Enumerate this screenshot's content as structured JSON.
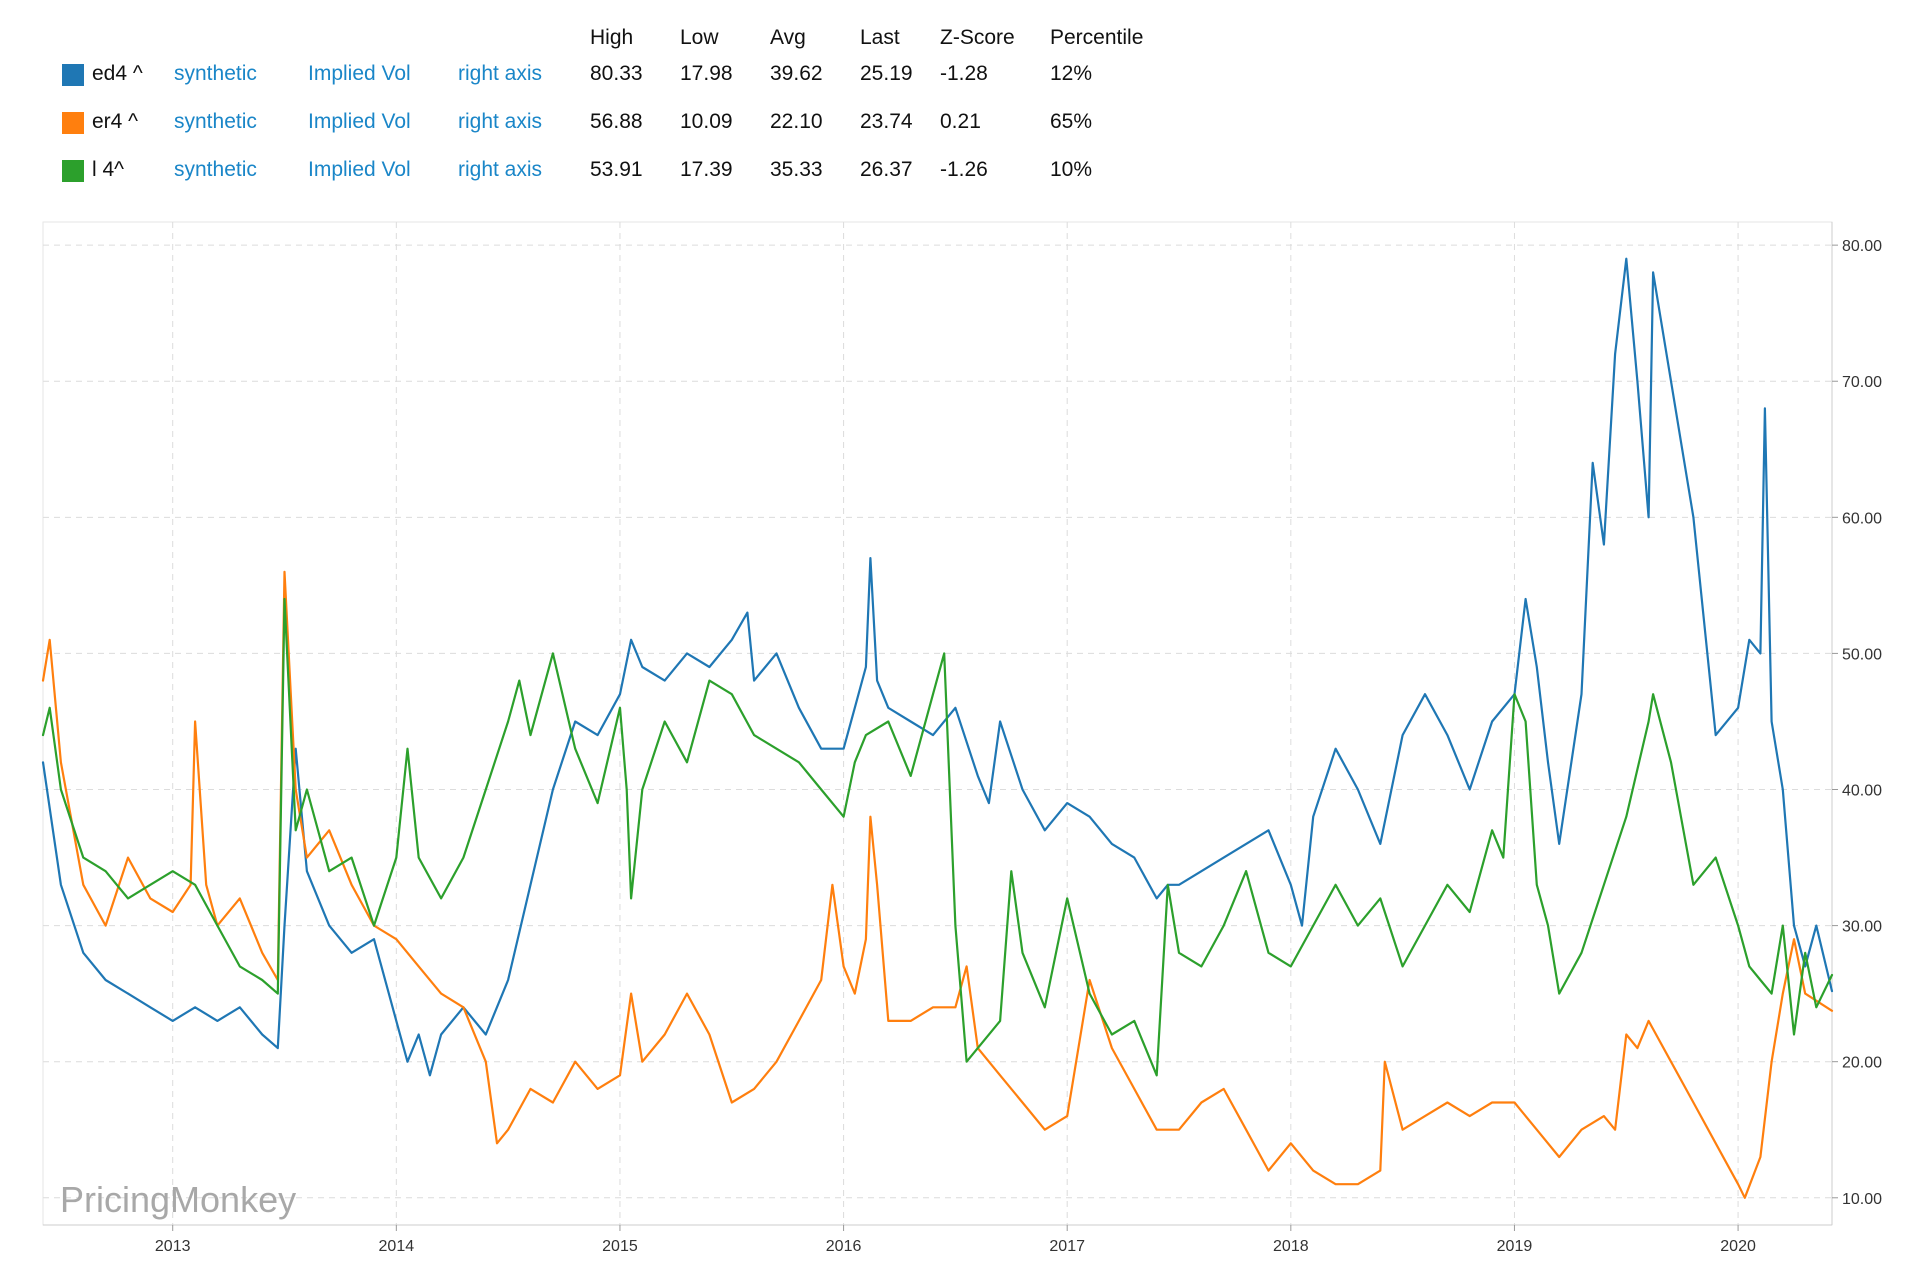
{
  "legend": {
    "headers": [
      "High",
      "Low",
      "Avg",
      "Last",
      "Z-Score",
      "Percentile"
    ],
    "rows": [
      {
        "name": "ed4 ^",
        "color": "#1f77b4",
        "source": "synthetic",
        "measure": "Implied Vol",
        "axis": "right axis",
        "high": "80.33",
        "low": "17.98",
        "avg": "39.62",
        "last": "25.19",
        "zscore": "-1.28",
        "percentile": "12%"
      },
      {
        "name": "er4 ^",
        "color": "#ff7f0e",
        "source": "synthetic",
        "measure": "Implied Vol",
        "axis": "right axis",
        "high": "56.88",
        "low": "10.09",
        "avg": "22.10",
        "last": "23.74",
        "zscore": "0.21",
        "percentile": "65%"
      },
      {
        "name": "l 4^",
        "color": "#2ca02c",
        "source": "synthetic",
        "measure": "Implied Vol",
        "axis": "right axis",
        "high": "53.91",
        "low": "17.39",
        "avg": "35.33",
        "last": "26.37",
        "zscore": "-1.26",
        "percentile": "10%"
      }
    ]
  },
  "watermark": "PricingMonkey",
  "chart_data": {
    "type": "line",
    "xlim": [
      2012.42,
      2020.42
    ],
    "ylim": [
      8.0,
      81.7
    ],
    "x_ticks": [
      "2013",
      "2014",
      "2015",
      "2016",
      "2017",
      "2018",
      "2019",
      "2020"
    ],
    "y_ticks": [
      "10.00",
      "20.00",
      "30.00",
      "40.00",
      "50.00",
      "60.00",
      "70.00",
      "80.00"
    ],
    "y_axis": "right",
    "grid": true,
    "series": [
      {
        "name": "ed4 ^",
        "color": "#1f77b4",
        "x": [
          2012.42,
          2012.5,
          2012.6,
          2012.7,
          2012.8,
          2012.9,
          2013.0,
          2013.1,
          2013.2,
          2013.3,
          2013.4,
          2013.47,
          2013.5,
          2013.55,
          2013.6,
          2013.7,
          2013.8,
          2013.9,
          2014.0,
          2014.05,
          2014.1,
          2014.15,
          2014.2,
          2014.3,
          2014.4,
          2014.5,
          2014.6,
          2014.7,
          2014.8,
          2014.9,
          2015.0,
          2015.05,
          2015.1,
          2015.2,
          2015.3,
          2015.4,
          2015.5,
          2015.57,
          2015.6,
          2015.7,
          2015.8,
          2015.9,
          2016.0,
          2016.05,
          2016.1,
          2016.12,
          2016.15,
          2016.2,
          2016.3,
          2016.4,
          2016.5,
          2016.6,
          2016.65,
          2016.7,
          2016.8,
          2016.9,
          2017.0,
          2017.1,
          2017.2,
          2017.3,
          2017.4,
          2017.45,
          2017.5,
          2017.6,
          2017.7,
          2017.8,
          2017.9,
          2018.0,
          2018.05,
          2018.1,
          2018.2,
          2018.3,
          2018.4,
          2018.5,
          2018.6,
          2018.7,
          2018.8,
          2018.9,
          2019.0,
          2019.05,
          2019.1,
          2019.15,
          2019.2,
          2019.3,
          2019.35,
          2019.4,
          2019.45,
          2019.5,
          2019.55,
          2019.6,
          2019.62,
          2019.7,
          2019.75,
          2019.8,
          2019.9,
          2020.0,
          2020.05,
          2020.1,
          2020.12,
          2020.15,
          2020.2,
          2020.25,
          2020.3,
          2020.35,
          2020.42
        ],
        "y": [
          42,
          33,
          28,
          26,
          25,
          24,
          23,
          24,
          23,
          24,
          22,
          21,
          30,
          43,
          34,
          30,
          28,
          29,
          23,
          20,
          22,
          19,
          22,
          24,
          22,
          26,
          33,
          40,
          45,
          44,
          47,
          51,
          49,
          48,
          50,
          49,
          51,
          53,
          48,
          50,
          46,
          43,
          43,
          46,
          49,
          57,
          48,
          46,
          45,
          44,
          46,
          41,
          39,
          45,
          40,
          37,
          39,
          38,
          36,
          35,
          32,
          33,
          33,
          34,
          35,
          36,
          37,
          33,
          30,
          38,
          43,
          40,
          36,
          44,
          47,
          44,
          40,
          45,
          47,
          54,
          49,
          42,
          36,
          47,
          64,
          58,
          72,
          79,
          70,
          60,
          78,
          70,
          65,
          60,
          44,
          46,
          51,
          50,
          68,
          45,
          40,
          30,
          27,
          30,
          25.19
        ]
      },
      {
        "name": "er4 ^",
        "color": "#ff7f0e",
        "x": [
          2012.42,
          2012.45,
          2012.5,
          2012.6,
          2012.7,
          2012.8,
          2012.9,
          2013.0,
          2013.08,
          2013.1,
          2013.15,
          2013.2,
          2013.3,
          2013.4,
          2013.47,
          2013.5,
          2013.55,
          2013.6,
          2013.7,
          2013.8,
          2013.9,
          2014.0,
          2014.1,
          2014.2,
          2014.3,
          2014.4,
          2014.45,
          2014.5,
          2014.6,
          2014.7,
          2014.8,
          2014.9,
          2015.0,
          2015.05,
          2015.1,
          2015.2,
          2015.3,
          2015.4,
          2015.5,
          2015.6,
          2015.7,
          2015.8,
          2015.9,
          2015.95,
          2016.0,
          2016.05,
          2016.1,
          2016.12,
          2016.15,
          2016.2,
          2016.3,
          2016.4,
          2016.5,
          2016.55,
          2016.6,
          2016.7,
          2016.8,
          2016.9,
          2017.0,
          2017.1,
          2017.2,
          2017.3,
          2017.4,
          2017.5,
          2017.6,
          2017.7,
          2017.8,
          2017.9,
          2018.0,
          2018.1,
          2018.2,
          2018.3,
          2018.4,
          2018.42,
          2018.5,
          2018.6,
          2018.7,
          2018.8,
          2018.9,
          2019.0,
          2019.1,
          2019.2,
          2019.3,
          2019.4,
          2019.45,
          2019.5,
          2019.55,
          2019.6,
          2019.7,
          2019.8,
          2019.9,
          2020.0,
          2020.03,
          2020.1,
          2020.15,
          2020.2,
          2020.25,
          2020.3,
          2020.42
        ],
        "y": [
          48,
          51,
          42,
          33,
          30,
          35,
          32,
          31,
          33,
          45,
          33,
          30,
          32,
          28,
          26,
          56,
          40,
          35,
          37,
          33,
          30,
          29,
          27,
          25,
          24,
          20,
          14,
          15,
          18,
          17,
          20,
          18,
          19,
          25,
          20,
          22,
          25,
          22,
          17,
          18,
          20,
          23,
          26,
          33,
          27,
          25,
          29,
          38,
          33,
          23,
          23,
          24,
          24,
          27,
          21,
          19,
          17,
          15,
          16,
          26,
          21,
          18,
          15,
          15,
          17,
          18,
          15,
          12,
          14,
          12,
          11,
          11,
          12,
          20,
          15,
          16,
          17,
          16,
          17,
          17,
          15,
          13,
          15,
          16,
          15,
          22,
          21,
          23,
          20,
          17,
          14,
          11,
          10,
          13,
          20,
          25,
          29,
          25,
          23.74
        ]
      },
      {
        "name": "l 4^",
        "color": "#2ca02c",
        "x": [
          2012.42,
          2012.45,
          2012.5,
          2012.6,
          2012.7,
          2012.8,
          2012.9,
          2013.0,
          2013.1,
          2013.2,
          2013.3,
          2013.4,
          2013.47,
          2013.5,
          2013.55,
          2013.6,
          2013.7,
          2013.8,
          2013.9,
          2014.0,
          2014.05,
          2014.1,
          2014.2,
          2014.3,
          2014.4,
          2014.5,
          2014.55,
          2014.6,
          2014.7,
          2014.8,
          2014.9,
          2015.0,
          2015.03,
          2015.05,
          2015.1,
          2015.2,
          2015.3,
          2015.4,
          2015.5,
          2015.6,
          2015.7,
          2015.8,
          2015.9,
          2016.0,
          2016.05,
          2016.1,
          2016.2,
          2016.3,
          2016.4,
          2016.45,
          2016.5,
          2016.55,
          2016.6,
          2016.7,
          2016.75,
          2016.8,
          2016.9,
          2017.0,
          2017.1,
          2017.2,
          2017.3,
          2017.4,
          2017.45,
          2017.5,
          2017.6,
          2017.7,
          2017.8,
          2017.9,
          2018.0,
          2018.1,
          2018.2,
          2018.3,
          2018.4,
          2018.5,
          2018.6,
          2018.7,
          2018.8,
          2018.9,
          2018.95,
          2019.0,
          2019.05,
          2019.1,
          2019.15,
          2019.2,
          2019.3,
          2019.4,
          2019.5,
          2019.6,
          2019.62,
          2019.7,
          2019.8,
          2019.9,
          2020.0,
          2020.05,
          2020.1,
          2020.15,
          2020.2,
          2020.25,
          2020.3,
          2020.35,
          2020.42
        ],
        "y": [
          44,
          46,
          40,
          35,
          34,
          32,
          33,
          34,
          33,
          30,
          27,
          26,
          25,
          54,
          37,
          40,
          34,
          35,
          30,
          35,
          43,
          35,
          32,
          35,
          40,
          45,
          48,
          44,
          50,
          43,
          39,
          46,
          40,
          32,
          40,
          45,
          42,
          48,
          47,
          44,
          43,
          42,
          40,
          38,
          42,
          44,
          45,
          41,
          47,
          50,
          30,
          20,
          21,
          23,
          34,
          28,
          24,
          32,
          25,
          22,
          23,
          19,
          33,
          28,
          27,
          30,
          34,
          28,
          27,
          30,
          33,
          30,
          32,
          27,
          30,
          33,
          31,
          37,
          35,
          47,
          45,
          33,
          30,
          25,
          28,
          33,
          38,
          45,
          47,
          42,
          33,
          35,
          30,
          27,
          26,
          25,
          30,
          22,
          28,
          24,
          26.37
        ]
      }
    ]
  }
}
